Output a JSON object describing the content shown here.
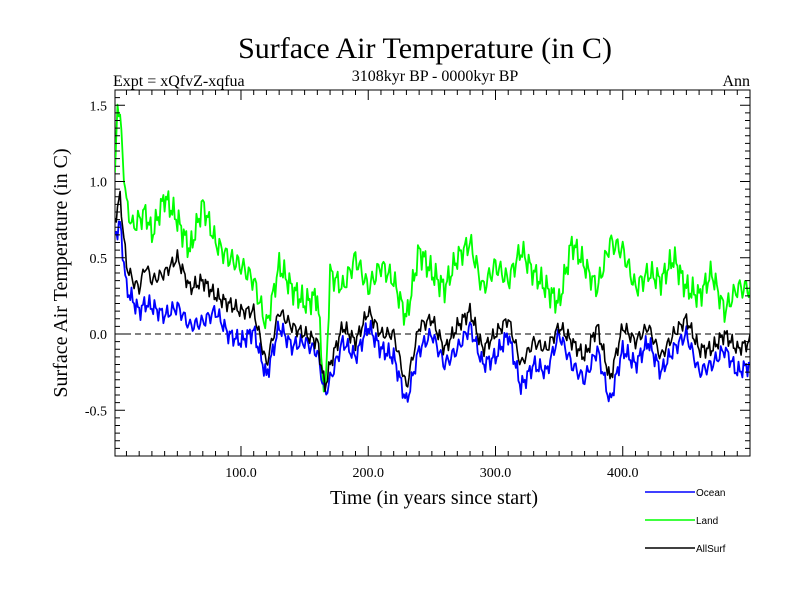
{
  "chart_data": {
    "type": "line",
    "title": "Surface Air Temperature (in C)",
    "subtitle": "3108kyr BP - 0000kyr BP",
    "experiment": "Expt = xQfvZ-xqfua",
    "season": "Ann",
    "xlabel": "Time (in years since start)",
    "ylabel": "Surface Air Temperature (in C)",
    "xlim": [
      1,
      500
    ],
    "ylim": [
      -0.8,
      1.6
    ],
    "xticks": [
      {
        "value": 100,
        "label": "100.0"
      },
      {
        "value": 200,
        "label": "200.0"
      },
      {
        "value": 300,
        "label": "300.0"
      },
      {
        "value": 400,
        "label": "400.0"
      }
    ],
    "yticks": [
      {
        "value": -0.5,
        "label": "-0.5"
      },
      {
        "value": 0.0,
        "label": "0.0"
      },
      {
        "value": 0.5,
        "label": "0.5"
      },
      {
        "value": 1.0,
        "label": "1.0"
      },
      {
        "value": 1.5,
        "label": "1.5"
      }
    ],
    "reference_line": 0.0,
    "series": [
      {
        "name": "Ocean",
        "color": "#0000ff",
        "x": [
          1,
          5,
          10,
          15,
          20,
          25,
          30,
          40,
          50,
          60,
          70,
          80,
          90,
          100,
          110,
          120,
          130,
          140,
          150,
          160,
          166,
          170,
          180,
          190,
          200,
          210,
          220,
          230,
          240,
          250,
          260,
          270,
          280,
          290,
          300,
          310,
          320,
          330,
          340,
          350,
          360,
          370,
          380,
          390,
          400,
          410,
          420,
          430,
          440,
          450,
          460,
          470,
          480,
          490,
          500
        ],
        "values": [
          0.65,
          0.72,
          0.3,
          0.22,
          0.15,
          0.2,
          0.18,
          0.12,
          0.18,
          0.05,
          0.08,
          0.15,
          0.0,
          -0.05,
          0.02,
          -0.28,
          0.05,
          -0.08,
          -0.05,
          -0.12,
          -0.4,
          -0.3,
          -0.05,
          -0.15,
          0.05,
          -0.1,
          -0.15,
          -0.45,
          -0.1,
          0.0,
          -0.2,
          -0.1,
          0.05,
          -0.2,
          -0.15,
          0.0,
          -0.35,
          -0.2,
          -0.25,
          0.0,
          -0.2,
          -0.3,
          -0.1,
          -0.45,
          -0.1,
          -0.2,
          -0.05,
          -0.25,
          -0.1,
          0.0,
          -0.25,
          -0.2,
          -0.1,
          -0.25,
          -0.2
        ]
      },
      {
        "name": "Land",
        "color": "#00ff00",
        "x": [
          1,
          3,
          5,
          10,
          15,
          20,
          25,
          30,
          40,
          50,
          60,
          70,
          80,
          90,
          100,
          110,
          120,
          130,
          140,
          150,
          160,
          166,
          170,
          180,
          190,
          200,
          210,
          220,
          230,
          240,
          250,
          260,
          270,
          280,
          290,
          300,
          310,
          320,
          330,
          340,
          350,
          360,
          370,
          380,
          390,
          400,
          410,
          420,
          430,
          440,
          450,
          460,
          470,
          480,
          490,
          500
        ],
        "values": [
          1.0,
          1.55,
          1.4,
          0.85,
          0.7,
          0.75,
          0.8,
          0.65,
          0.9,
          0.75,
          0.55,
          0.85,
          0.6,
          0.5,
          0.45,
          0.35,
          0.05,
          0.45,
          0.3,
          0.2,
          0.25,
          -0.45,
          0.4,
          0.3,
          0.5,
          0.3,
          0.45,
          0.35,
          0.1,
          0.55,
          0.4,
          0.3,
          0.5,
          0.6,
          0.3,
          0.45,
          0.35,
          0.55,
          0.4,
          0.3,
          0.2,
          0.6,
          0.45,
          0.3,
          0.6,
          0.55,
          0.3,
          0.4,
          0.35,
          0.5,
          0.3,
          0.25,
          0.4,
          0.15,
          0.3,
          0.3
        ]
      },
      {
        "name": "AllSurf",
        "color": "#000000",
        "x": [
          1,
          5,
          10,
          15,
          20,
          25,
          30,
          40,
          50,
          60,
          70,
          80,
          90,
          100,
          110,
          120,
          130,
          140,
          150,
          160,
          166,
          170,
          180,
          190,
          200,
          210,
          220,
          230,
          240,
          250,
          260,
          270,
          280,
          290,
          300,
          310,
          320,
          330,
          340,
          350,
          360,
          370,
          380,
          390,
          400,
          410,
          420,
          430,
          440,
          450,
          460,
          470,
          480,
          490,
          500
        ],
        "values": [
          0.75,
          0.9,
          0.45,
          0.35,
          0.3,
          0.45,
          0.35,
          0.4,
          0.5,
          0.3,
          0.35,
          0.25,
          0.2,
          0.15,
          0.15,
          -0.2,
          0.15,
          0.05,
          0.0,
          -0.05,
          -0.35,
          -0.2,
          0.05,
          -0.05,
          0.15,
          0.0,
          0.0,
          -0.35,
          0.05,
          0.1,
          -0.1,
          0.05,
          0.15,
          -0.1,
          0.0,
          0.1,
          -0.2,
          -0.05,
          -0.1,
          0.05,
          -0.05,
          -0.15,
          0.05,
          -0.3,
          0.05,
          -0.05,
          0.05,
          -0.15,
          0.0,
          0.1,
          -0.1,
          -0.1,
          0.0,
          -0.1,
          -0.05
        ]
      }
    ]
  }
}
